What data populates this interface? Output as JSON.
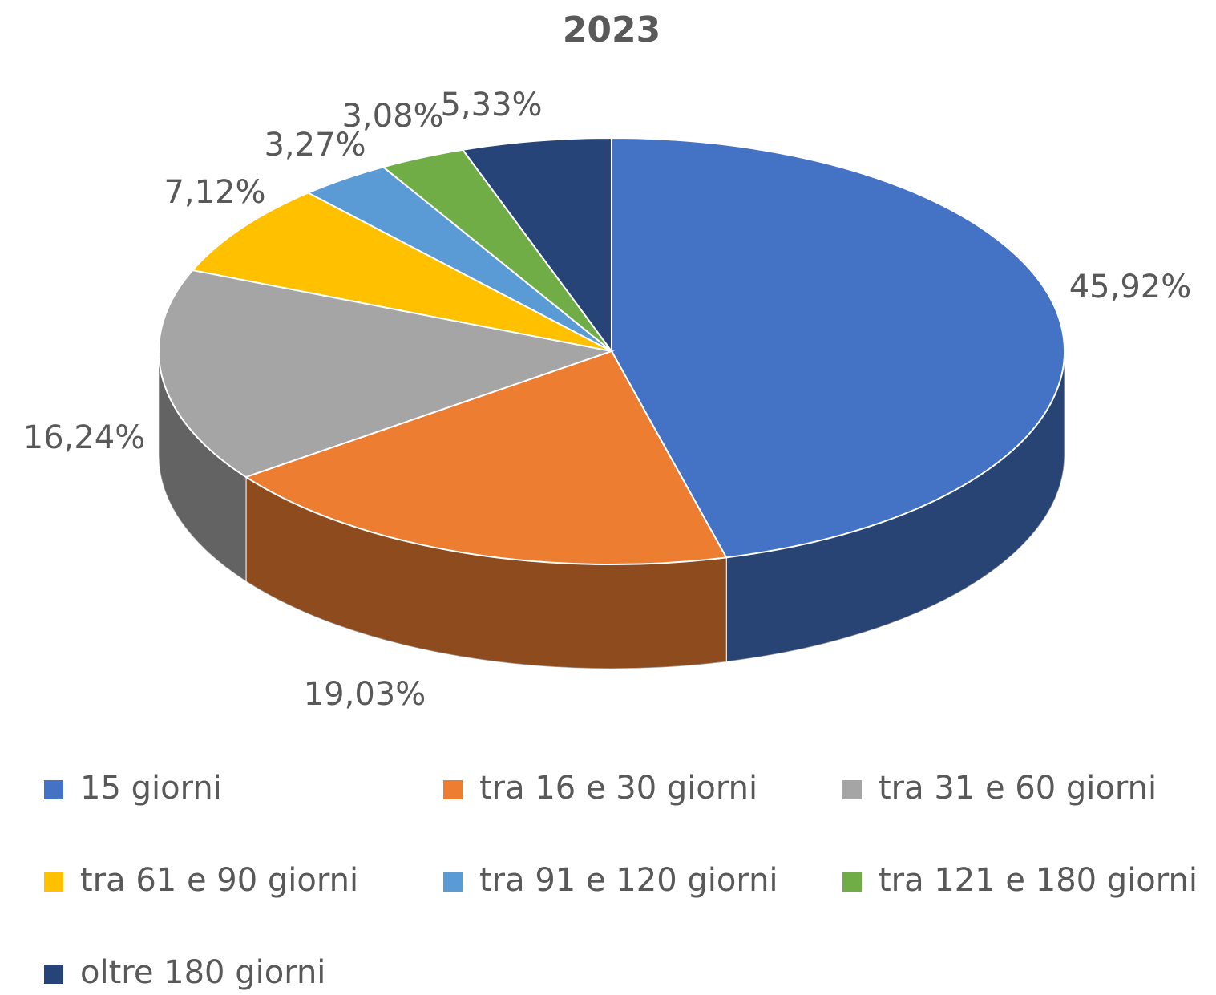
{
  "chart_data": {
    "type": "pie",
    "title": "2023",
    "categories": [
      "15 giorni",
      "tra 16 e 30 giorni",
      "tra 31 e 60 giorni",
      "tra 61 e 90 giorni",
      "tra 91 e 120 giorni",
      "tra 121 e 180 giorni",
      "oltre 180 giorni"
    ],
    "values": [
      45.92,
      19.03,
      16.24,
      7.12,
      3.27,
      3.08,
      5.33
    ],
    "value_labels": [
      "45,92%",
      "19,03%",
      "16,24%",
      "7,12%",
      "3,27%",
      "3,08%",
      "5,33%"
    ],
    "colors": [
      "#4472c4",
      "#ed7d31",
      "#a5a5a5",
      "#ffc000",
      "#5b9bd5",
      "#70ad47",
      "#264478"
    ],
    "legend": "bottom"
  }
}
